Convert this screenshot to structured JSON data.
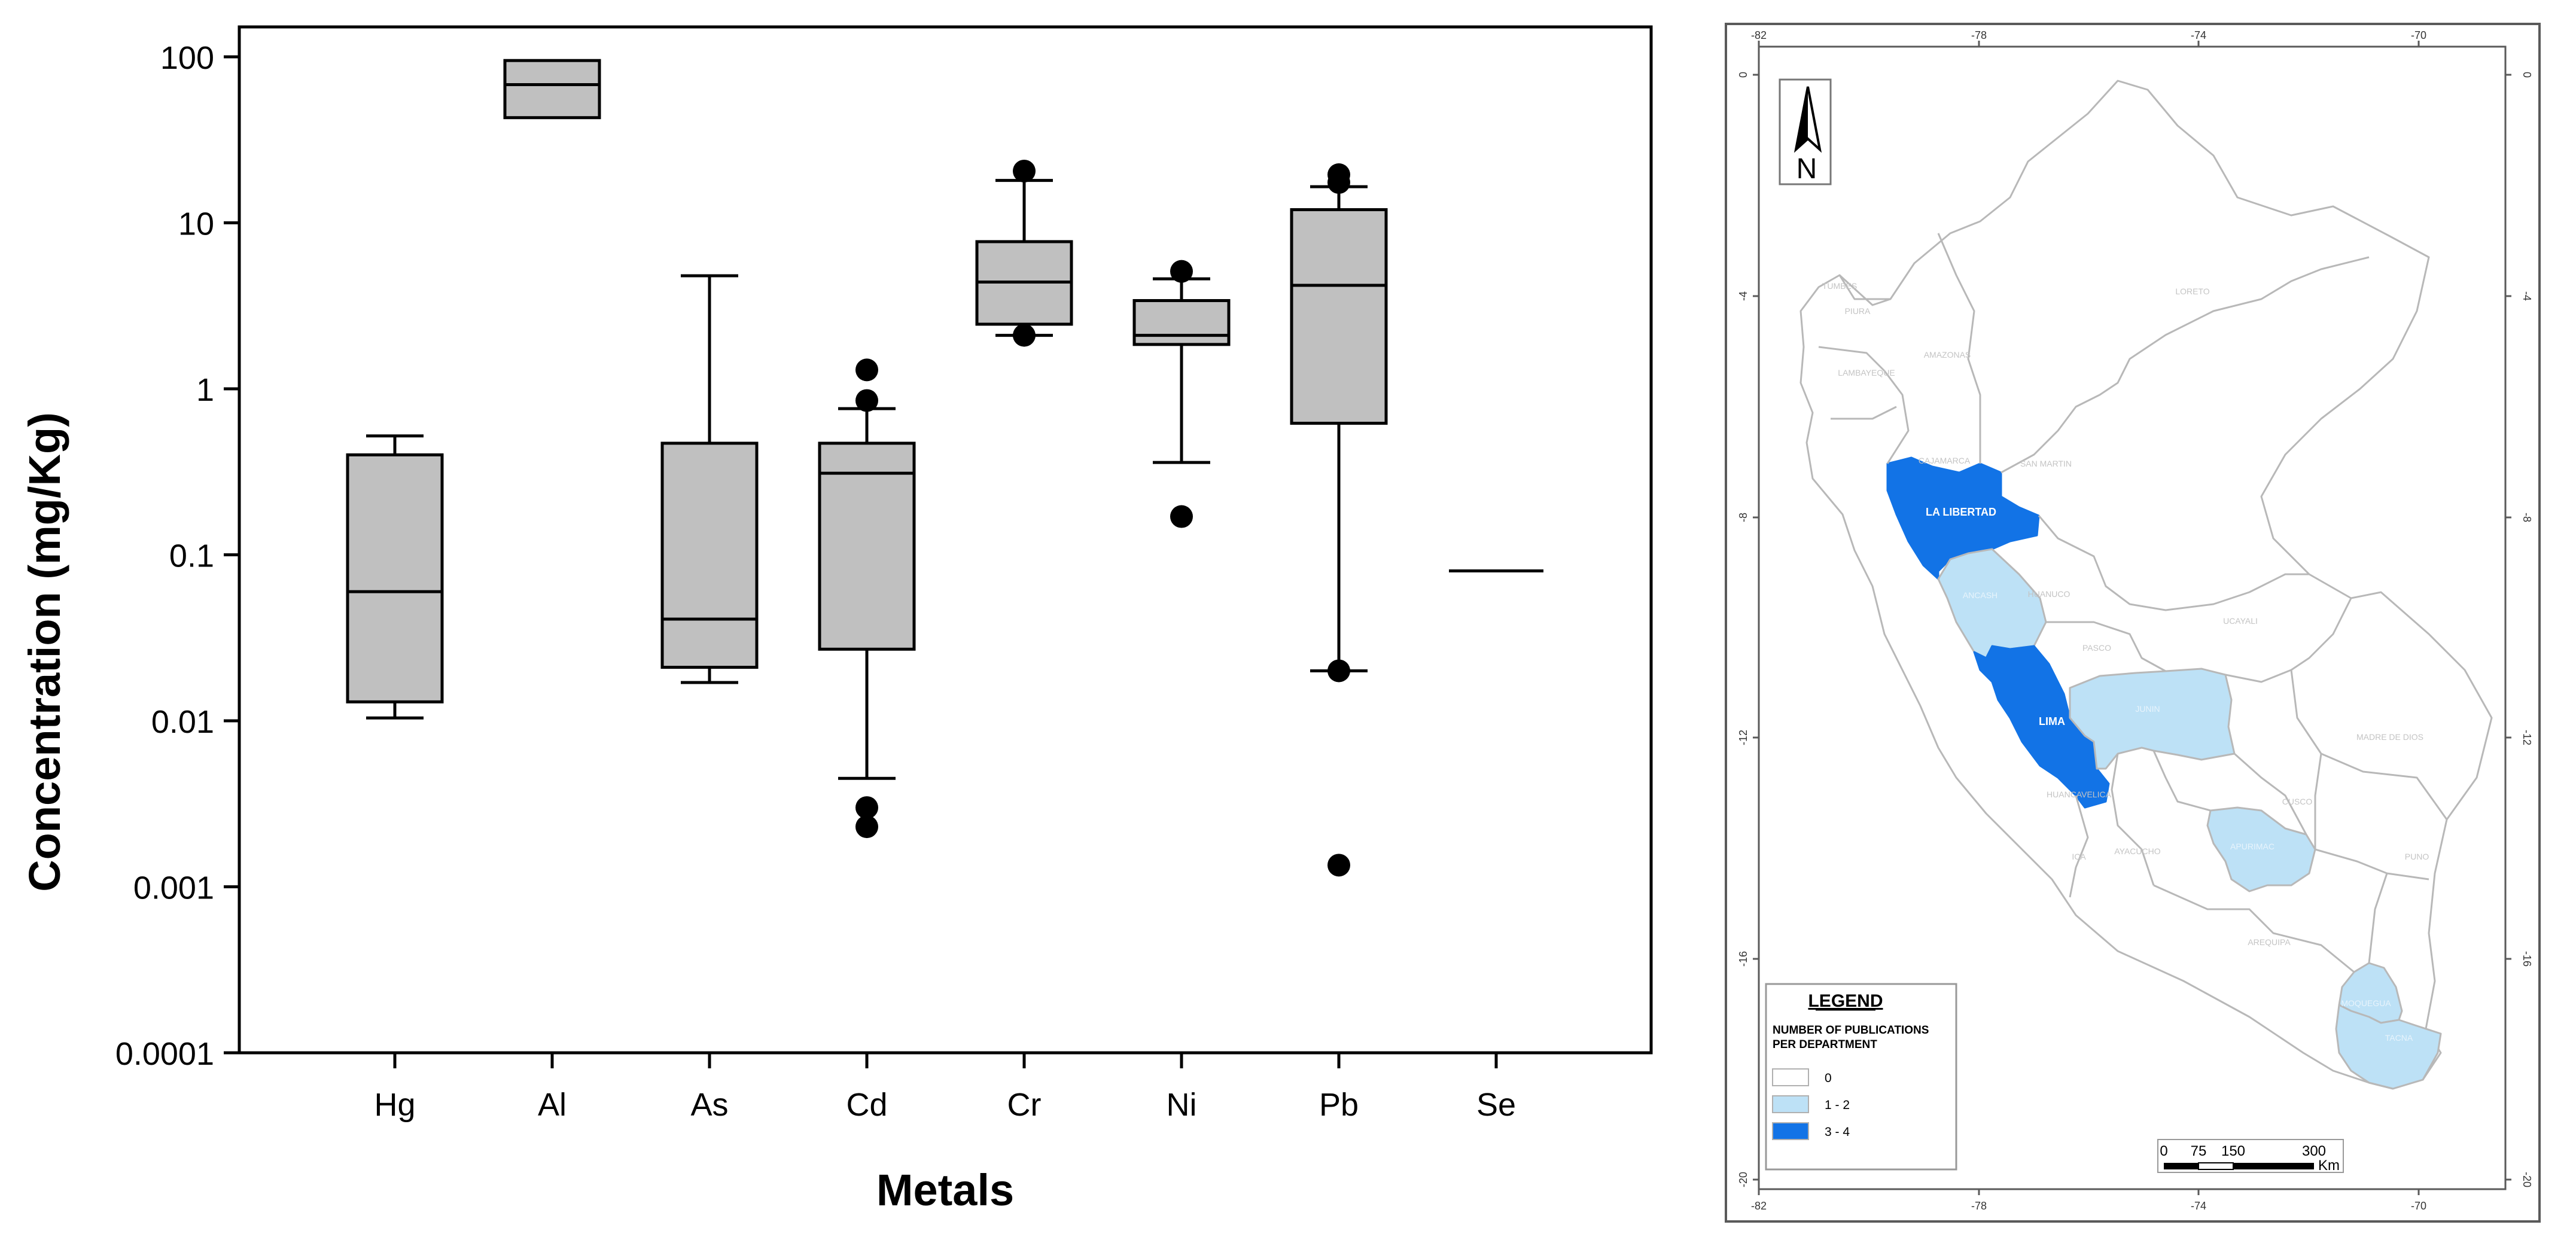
{
  "chart_data": {
    "type": "box",
    "xlabel": "Metals",
    "ylabel": "Concentration (mg/Kg)",
    "yscale": "log",
    "ylim": [
      0.0001,
      100
    ],
    "yticks": [
      {
        "value": 100,
        "label": "100"
      },
      {
        "value": 10,
        "label": "10"
      },
      {
        "value": 1,
        "label": "1"
      },
      {
        "value": 0.1,
        "label": "0.1"
      },
      {
        "value": 0.01,
        "label": "0.01"
      },
      {
        "value": 0.001,
        "label": "0.001"
      },
      {
        "value": 0.0001,
        "label": "0.0001"
      }
    ],
    "categories": [
      "Hg",
      "Al",
      "As",
      "Cd",
      "Cr",
      "Ni",
      "Pb",
      "Se"
    ],
    "boxes": [
      {
        "label": "Hg",
        "whisker_low": 0.0104,
        "q1": 0.013,
        "median": 0.06,
        "q3": 0.4,
        "whisker_high": 0.52,
        "outliers": []
      },
      {
        "label": "Al",
        "whisker_low": 43,
        "q1": 43,
        "median": 68,
        "q3": 95,
        "whisker_high": 95,
        "outliers": []
      },
      {
        "label": "As",
        "whisker_low": 0.017,
        "q1": 0.021,
        "median": 0.041,
        "q3": 0.47,
        "whisker_high": 4.8,
        "outliers": []
      },
      {
        "label": "Cd",
        "whisker_low": 0.0045,
        "q1": 0.027,
        "median": 0.31,
        "q3": 0.47,
        "whisker_high": 0.76,
        "outliers": [
          1.3,
          0.85,
          0.003,
          0.0023
        ]
      },
      {
        "label": "Cr",
        "whisker_low": 2.1,
        "q1": 2.45,
        "median": 4.4,
        "q3": 7.7,
        "whisker_high": 18,
        "outliers": [
          20.5,
          2.1
        ]
      },
      {
        "label": "Ni",
        "whisker_low": 0.36,
        "q1": 1.85,
        "median": 2.1,
        "q3": 3.4,
        "whisker_high": 4.6,
        "outliers": [
          5.1,
          0.17
        ]
      },
      {
        "label": "Pb",
        "whisker_low": 0.02,
        "q1": 0.62,
        "median": 4.2,
        "q3": 12,
        "whisker_high": 16.5,
        "outliers": [
          19.5,
          17.5,
          0.02,
          0.00135
        ]
      },
      {
        "label": "Se",
        "whisker_low": 0.08,
        "q1": 0.08,
        "median": 0.08,
        "q3": 0.08,
        "whisker_high": 0.08,
        "outliers": []
      }
    ]
  },
  "map": {
    "north_label": "N",
    "longitude_ticks": [
      "-82",
      "-78",
      "-74",
      "-70"
    ],
    "latitude_ticks": [
      "0",
      "-4",
      "-8",
      "-12",
      "-16",
      "-20"
    ],
    "regions": [
      {
        "name": "TUMBES",
        "count_class": "0"
      },
      {
        "name": "PIURA",
        "count_class": "0"
      },
      {
        "name": "LAMBAYEQUE",
        "count_class": "0"
      },
      {
        "name": "AMAZONAS",
        "count_class": "0"
      },
      {
        "name": "CAJAMARCA",
        "count_class": "0"
      },
      {
        "name": "SAN MARTIN",
        "count_class": "0"
      },
      {
        "name": "LORETO",
        "count_class": "0"
      },
      {
        "name": "LA LIBERTAD",
        "count_class": "3 - 4"
      },
      {
        "name": "ANCASH",
        "count_class": "1 - 2"
      },
      {
        "name": "HUANUCO",
        "count_class": "0"
      },
      {
        "name": "UCAYALI",
        "count_class": "0"
      },
      {
        "name": "PASCO",
        "count_class": "0"
      },
      {
        "name": "LIMA",
        "count_class": "3 - 4"
      },
      {
        "name": "JUNIN",
        "count_class": "1 - 2"
      },
      {
        "name": "HUANCAVELICA",
        "count_class": "0"
      },
      {
        "name": "ICA",
        "count_class": "0"
      },
      {
        "name": "AYACUCHO",
        "count_class": "0"
      },
      {
        "name": "APURIMAC",
        "count_class": "1 - 2"
      },
      {
        "name": "CUSCO",
        "count_class": "0"
      },
      {
        "name": "MADRE DE DIOS",
        "count_class": "0"
      },
      {
        "name": "PUNO",
        "count_class": "0"
      },
      {
        "name": "AREQUIPA",
        "count_class": "0"
      },
      {
        "name": "MOQUEGUA",
        "count_class": "1 - 2"
      },
      {
        "name": "TACNA",
        "count_class": "1 - 2"
      }
    ],
    "legend": {
      "title": "LEGEND",
      "subtitle_line1": "NUMBER OF PUBLICATIONS",
      "subtitle_line2": "PER DEPARTMENT",
      "items": [
        {
          "label": "0",
          "color": "#ffffff"
        },
        {
          "label": "1 - 2",
          "color": "#bde1f6"
        },
        {
          "label": "3 - 4",
          "color": "#1273e6"
        }
      ]
    },
    "scale_bar": {
      "labels": [
        "0",
        "75",
        "150",
        "300"
      ],
      "unit": "Km"
    }
  },
  "colors": {
    "box_fill": "#c0c0c0",
    "outline": "#000000",
    "map_light": "#bde1f6",
    "map_dark": "#1273e6",
    "map_border": "#b8b8b8",
    "map_frame": "#5a5a5a"
  }
}
